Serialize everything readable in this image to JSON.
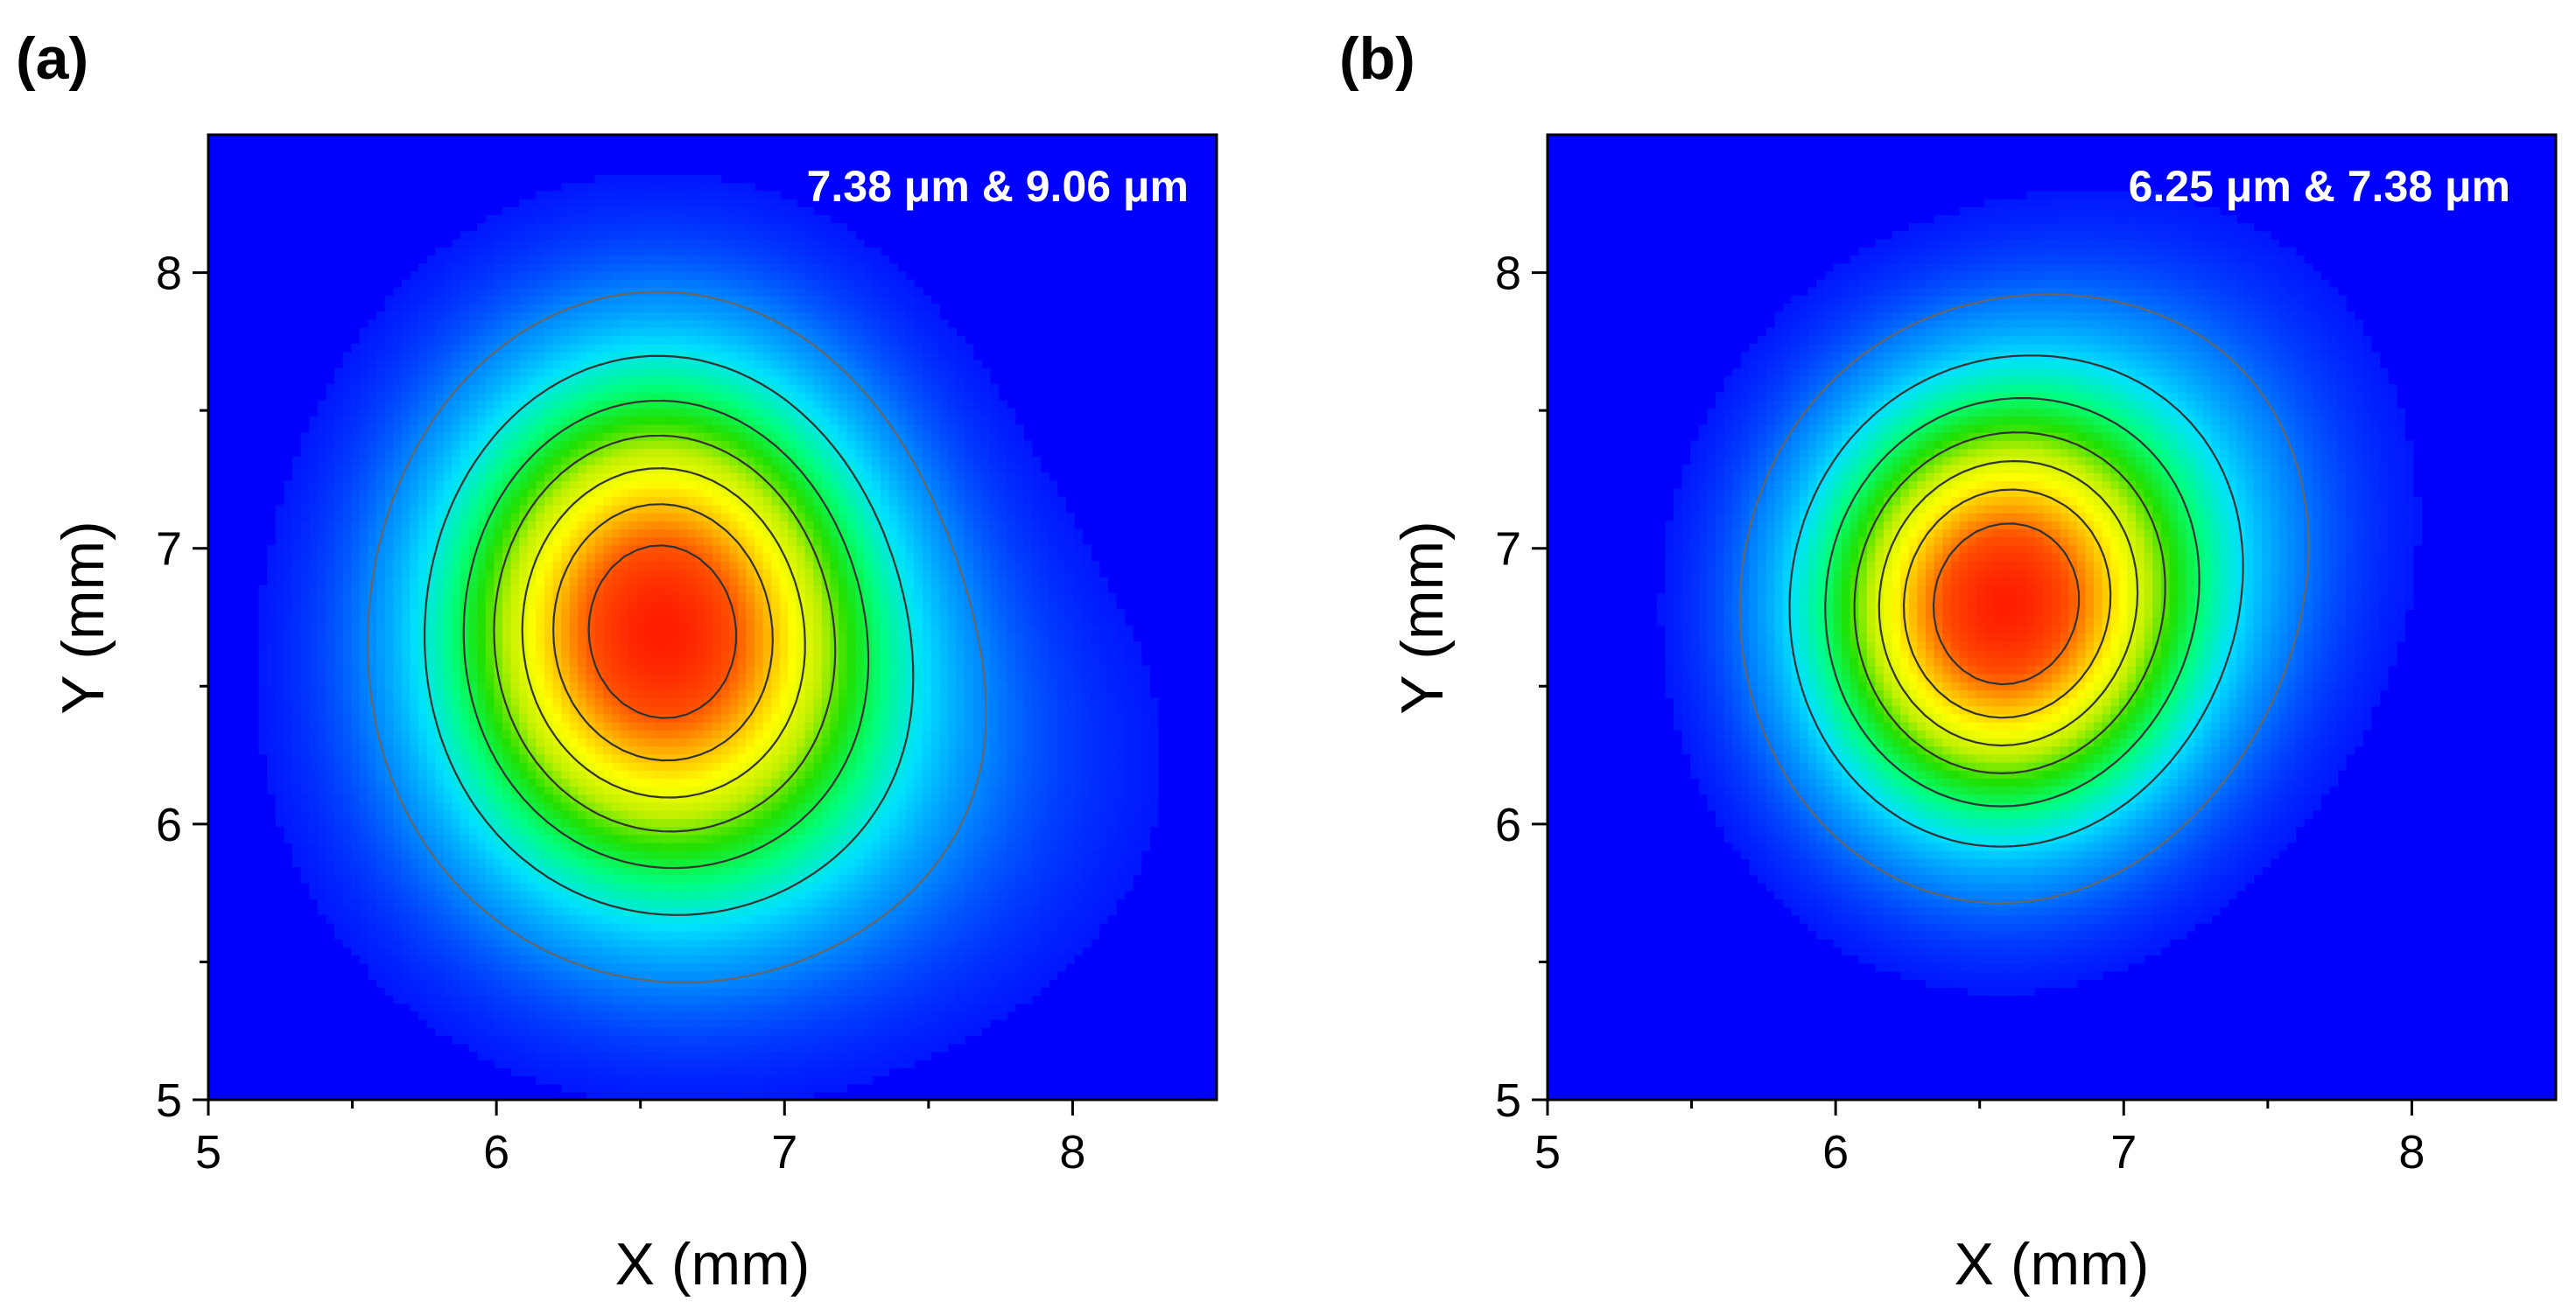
{
  "chart_data": [
    {
      "type": "heatmap",
      "panel_label": "(a)",
      "annotation": "7.38 μm & 9.06 μm",
      "xlabel": "X (mm)",
      "ylabel": "Y (mm)",
      "xlim": [
        5,
        8.5
      ],
      "ylim": [
        5,
        8.5
      ],
      "xticks": [
        5,
        6,
        7,
        8
      ],
      "yticks": [
        5,
        6,
        7,
        8
      ],
      "xtick_labels": [
        "5",
        "6",
        "7",
        "8"
      ],
      "ytick_labels": [
        "5",
        "6",
        "7",
        "8"
      ],
      "colormap": [
        "#0000ff",
        "#0080ff",
        "#00e0ff",
        "#00ff80",
        "#20e000",
        "#c0f000",
        "#ffff00",
        "#ffb000",
        "#ff5000",
        "#ff2000"
      ],
      "contour_levels": [
        0.12,
        0.25,
        0.38,
        0.5,
        0.62,
        0.75,
        0.88
      ],
      "peak": {
        "x": 6.56,
        "y": 6.76
      },
      "sigma": {
        "x": 0.48,
        "y": 0.58
      },
      "shoulder": {
        "dx": 0.3,
        "dy": -0.55,
        "sx": 0.7,
        "sy": 0.55,
        "amp": 0.18
      }
    },
    {
      "type": "heatmap",
      "panel_label": "(b)",
      "annotation": "6.25 μm & 7.38 μm",
      "xlabel": "X (mm)",
      "ylabel": "Y (mm)",
      "xlim": [
        5,
        8.5
      ],
      "ylim": [
        5,
        8.5
      ],
      "xticks": [
        5,
        6,
        7,
        8
      ],
      "yticks": [
        5,
        6,
        7,
        8
      ],
      "xtick_labels": [
        "5",
        "6",
        "7",
        "8"
      ],
      "ytick_labels": [
        "5",
        "6",
        "7",
        "8"
      ],
      "colormap": [
        "#0000ff",
        "#0080ff",
        "#00e0ff",
        "#00ff80",
        "#20e000",
        "#c0f000",
        "#ffff00",
        "#ffb000",
        "#ff5000",
        "#ff2000"
      ],
      "contour_levels": [
        0.1,
        0.22,
        0.35,
        0.48,
        0.6,
        0.72,
        0.85
      ],
      "peak": {
        "x": 6.56,
        "y": 6.78
      },
      "sigma": {
        "x": 0.42,
        "y": 0.5
      },
      "shoulder": {
        "dx": 0.55,
        "dy": 0.35,
        "sx": 0.45,
        "sy": 0.55,
        "amp": 0.15
      }
    }
  ]
}
